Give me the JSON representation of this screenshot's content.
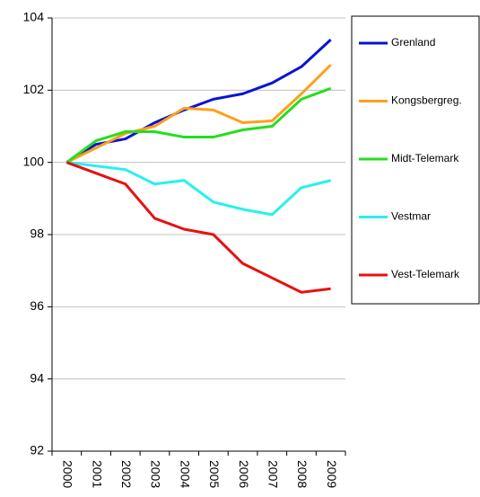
{
  "chart_data": {
    "type": "line",
    "categories": [
      "2000",
      "2001",
      "2002",
      "2003",
      "2004",
      "2005",
      "2006",
      "2007",
      "2008",
      "2009"
    ],
    "series": [
      {
        "name": "Grenland",
        "color": "#0a14d2",
        "values": [
          100,
          100.5,
          100.65,
          101.1,
          101.45,
          101.75,
          101.9,
          102.2,
          102.65,
          103.4
        ]
      },
      {
        "name": "Kongsbergreg.",
        "color": "#ff9f1a",
        "values": [
          100,
          100.4,
          100.8,
          101.0,
          101.5,
          101.45,
          101.1,
          101.15,
          101.9,
          102.7
        ]
      },
      {
        "name": "Midt-Telemark",
        "color": "#22e01c",
        "values": [
          100,
          100.6,
          100.85,
          100.85,
          100.7,
          100.7,
          100.9,
          101.0,
          101.75,
          102.05
        ]
      },
      {
        "name": "Vestmar",
        "color": "#28f0f0",
        "values": [
          100,
          99.9,
          99.8,
          99.4,
          99.5,
          98.9,
          98.7,
          98.55,
          99.3,
          99.5
        ]
      },
      {
        "name": "Vest-Telemark",
        "color": "#e81010",
        "values": [
          100,
          99.7,
          99.4,
          98.45,
          98.15,
          98.0,
          97.2,
          96.8,
          96.4,
          96.5
        ]
      }
    ],
    "ylim": [
      92,
      104
    ],
    "yticks": [
      92,
      94,
      96,
      98,
      100,
      102,
      104
    ],
    "grid": true
  }
}
